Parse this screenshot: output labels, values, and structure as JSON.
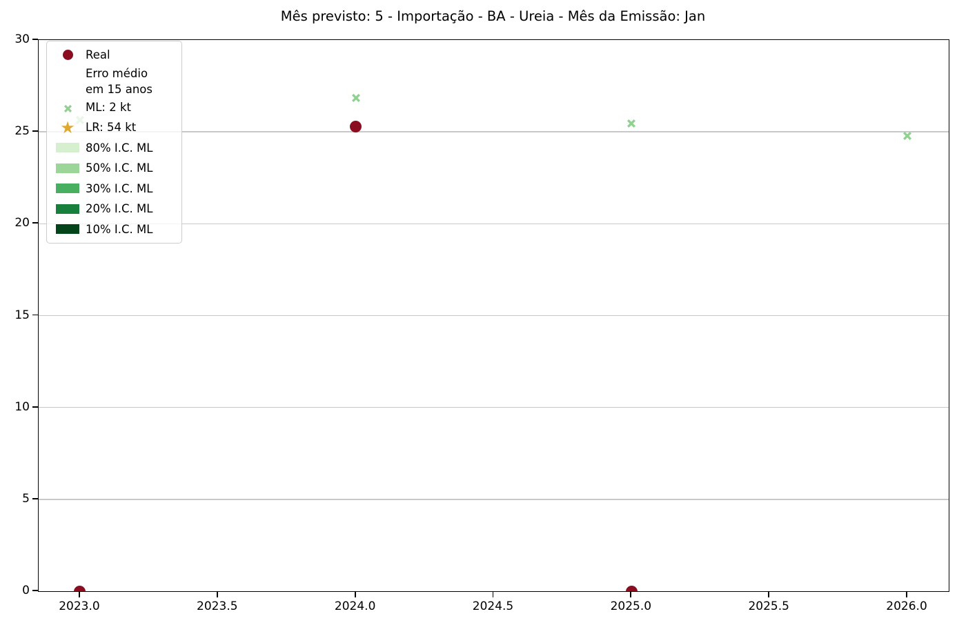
{
  "chart_data": {
    "type": "scatter",
    "title": "Mês previsto: 5 - Importação - BA - Ureia - Mês da Emissão: Jan",
    "xlabel": "",
    "ylabel": "",
    "xlim": [
      2022.85,
      2026.15
    ],
    "ylim": [
      0,
      30
    ],
    "x_ticks": [
      {
        "value": 2023.0,
        "label": "2023.0"
      },
      {
        "value": 2023.5,
        "label": "2023.5"
      },
      {
        "value": 2024.0,
        "label": "2024.0"
      },
      {
        "value": 2024.5,
        "label": "2024.5"
      },
      {
        "value": 2025.0,
        "label": "2025.0"
      },
      {
        "value": 2025.5,
        "label": "2025.5"
      },
      {
        "value": 2026.0,
        "label": "2026.0"
      }
    ],
    "y_ticks": [
      {
        "value": 0,
        "label": "0"
      },
      {
        "value": 5,
        "label": "5"
      },
      {
        "value": 10,
        "label": "10"
      },
      {
        "value": 15,
        "label": "15"
      },
      {
        "value": 20,
        "label": "20"
      },
      {
        "value": 25,
        "label": "25"
      },
      {
        "value": 30,
        "label": "30"
      }
    ],
    "grid": "horizontal",
    "legend_position": "upper-left",
    "series": [
      {
        "name": "Real",
        "marker": "circle",
        "color": "#8b0e20",
        "size": 17,
        "points": [
          {
            "x": 2023.0,
            "y": 0.0
          },
          {
            "x": 2024.0,
            "y": 25.3
          },
          {
            "x": 2025.0,
            "y": 0.0
          }
        ]
      },
      {
        "name": "ML",
        "marker": "x",
        "color": "#8fd18f",
        "size": 14,
        "points": [
          {
            "x": 2023.0,
            "y": 25.7
          },
          {
            "x": 2024.0,
            "y": 26.9
          },
          {
            "x": 2025.0,
            "y": 25.5
          },
          {
            "x": 2026.0,
            "y": 24.8
          }
        ]
      },
      {
        "name": "LR",
        "marker": "star",
        "color": "#dfa92e",
        "size": 18,
        "points": []
      }
    ],
    "legend_entries": [
      {
        "label": "Real",
        "marker": "circle",
        "color": "#8b0e20"
      },
      {
        "label": "Erro médio\nem 15 anos",
        "marker": "none",
        "color": ""
      },
      {
        "label": "ML: 2 kt",
        "marker": "x",
        "color": "#8fd18f"
      },
      {
        "label": "LR: 54 kt",
        "marker": "star",
        "color": "#dfa92e"
      },
      {
        "label": "80% I.C. ML",
        "marker": "patch",
        "color": "#d5efcf"
      },
      {
        "label": "50% I.C. ML",
        "marker": "patch",
        "color": "#9bd598"
      },
      {
        "label": "30% I.C. ML",
        "marker": "patch",
        "color": "#48ae60"
      },
      {
        "label": "20% I.C. ML",
        "marker": "patch",
        "color": "#18803c"
      },
      {
        "label": "10% I.C. ML",
        "marker": "patch",
        "color": "#04441b"
      }
    ],
    "colors": {
      "spine": "#000000",
      "grid": "#c8c8c8",
      "legend_border": "#cccccc"
    }
  }
}
